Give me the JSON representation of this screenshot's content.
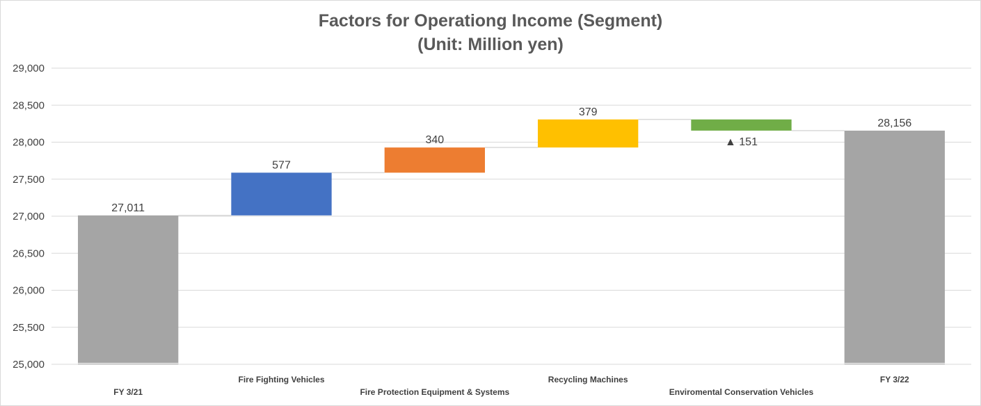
{
  "chart_data": {
    "type": "waterfall",
    "title": "Factors for Operationg Income (Segment)",
    "subtitle": "(Unit: Million yen)",
    "xlabel": "",
    "ylabel": "",
    "ylim": [
      25000,
      29000
    ],
    "ytick_step": 500,
    "yticks": [
      "25,000",
      "25,500",
      "26,000",
      "26,500",
      "27,000",
      "27,500",
      "28,000",
      "28,500",
      "29,000"
    ],
    "grid": true,
    "legend": "none",
    "categories": [
      "FY 3/21",
      "Fire Fighting Vehicles",
      "Fire Protection Equipment & Systems",
      "Recycling Machines",
      "Enviromental Conservation Vehicles",
      "FY 3/22"
    ],
    "bars": [
      {
        "kind": "total",
        "value": 27011,
        "label": "27,011",
        "color": "#a5a5a5"
      },
      {
        "kind": "delta",
        "value": 577,
        "label": "577",
        "color": "#4472c4"
      },
      {
        "kind": "delta",
        "value": 340,
        "label": "340",
        "color": "#ed7d31"
      },
      {
        "kind": "delta",
        "value": 379,
        "label": "379",
        "color": "#ffc000"
      },
      {
        "kind": "delta",
        "value": -151,
        "label": "▲ 151",
        "color": "#70ad47"
      },
      {
        "kind": "total",
        "value": 28156,
        "label": "28,156",
        "color": "#a5a5a5"
      }
    ]
  }
}
